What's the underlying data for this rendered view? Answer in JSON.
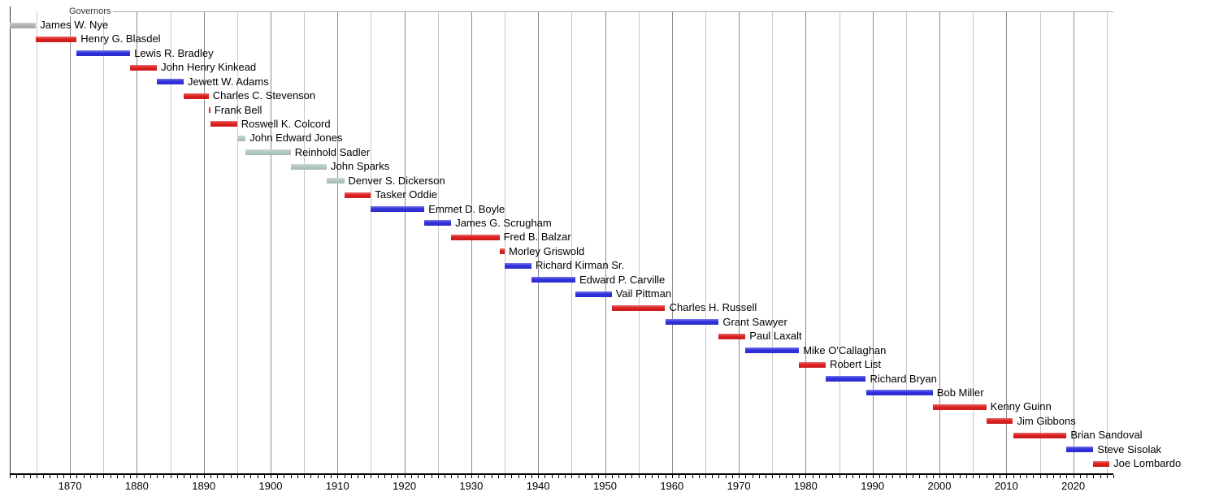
{
  "chart_data": {
    "type": "timeline",
    "title": "",
    "section_label": "Governors",
    "axis": {
      "min": 1861,
      "max": 2026,
      "grid_interval": 5,
      "decade_interval": 10,
      "minor_tick_interval": 1,
      "decade_labels": [
        1870,
        1880,
        1890,
        1900,
        1910,
        1920,
        1930,
        1940,
        1950,
        1960,
        1970,
        1980,
        1990,
        2000,
        2010,
        2020
      ],
      "grid": true,
      "legend": "none"
    },
    "palette": {
      "red": "#dc2020",
      "blue": "#3030dd",
      "silver": "#b2c9bd",
      "gray": "#b3b3b3",
      "grid_minor": "#c9c9c9",
      "grid_decade": "#8c8c8c",
      "axis": "#000000",
      "section_line": "#aaaaaa"
    },
    "governors": [
      {
        "name": "James W. Nye",
        "color": "gray",
        "start": 1861.0,
        "end": 1864.92
      },
      {
        "name": "Henry G. Blasdel",
        "color": "red",
        "start": 1864.92,
        "end": 1871.0
      },
      {
        "name": "Lewis R. Bradley",
        "color": "blue",
        "start": 1871.0,
        "end": 1879.0
      },
      {
        "name": "John Henry Kinkead",
        "color": "red",
        "start": 1879.0,
        "end": 1883.0
      },
      {
        "name": "Jewett W. Adams",
        "color": "blue",
        "start": 1883.0,
        "end": 1887.0
      },
      {
        "name": "Charles C. Stevenson",
        "color": "red",
        "start": 1887.0,
        "end": 1890.73
      },
      {
        "name": "Frank Bell",
        "color": "red",
        "start": 1890.73,
        "end": 1891.0
      },
      {
        "name": "Roswell K. Colcord",
        "color": "red",
        "start": 1891.0,
        "end": 1895.0
      },
      {
        "name": "John Edward Jones",
        "color": "silver",
        "start": 1895.0,
        "end": 1896.27
      },
      {
        "name": "Reinhold Sadler",
        "color": "silver",
        "start": 1896.27,
        "end": 1903.0
      },
      {
        "name": "John Sparks",
        "color": "silver",
        "start": 1903.0,
        "end": 1908.39
      },
      {
        "name": "Denver S. Dickerson",
        "color": "silver",
        "start": 1908.39,
        "end": 1911.0
      },
      {
        "name": "Tasker Oddie",
        "color": "red",
        "start": 1911.0,
        "end": 1915.0
      },
      {
        "name": "Emmet D. Boyle",
        "color": "blue",
        "start": 1915.0,
        "end": 1923.0
      },
      {
        "name": "James G. Scrugham",
        "color": "blue",
        "start": 1923.0,
        "end": 1927.0
      },
      {
        "name": "Fred B. Balzar",
        "color": "red",
        "start": 1927.0,
        "end": 1934.22
      },
      {
        "name": "Morley Griswold",
        "color": "red",
        "start": 1934.22,
        "end": 1935.0
      },
      {
        "name": "Richard Kirman Sr.",
        "color": "blue",
        "start": 1935.0,
        "end": 1939.0
      },
      {
        "name": "Edward P. Carville",
        "color": "blue",
        "start": 1939.0,
        "end": 1945.56
      },
      {
        "name": "Vail Pittman",
        "color": "blue",
        "start": 1945.56,
        "end": 1951.0
      },
      {
        "name": "Charles H. Russell",
        "color": "red",
        "start": 1951.0,
        "end": 1959.0
      },
      {
        "name": "Grant Sawyer",
        "color": "blue",
        "start": 1959.0,
        "end": 1967.0
      },
      {
        "name": "Paul Laxalt",
        "color": "red",
        "start": 1967.0,
        "end": 1971.0
      },
      {
        "name": "Mike O'Callaghan",
        "color": "blue",
        "start": 1971.0,
        "end": 1979.0
      },
      {
        "name": "Robert List",
        "color": "red",
        "start": 1979.0,
        "end": 1983.0
      },
      {
        "name": "Richard Bryan",
        "color": "blue",
        "start": 1983.0,
        "end": 1989.0
      },
      {
        "name": "Bob Miller",
        "color": "blue",
        "start": 1989.0,
        "end": 1999.0
      },
      {
        "name": "Kenny Guinn",
        "color": "red",
        "start": 1999.0,
        "end": 2007.0
      },
      {
        "name": "Jim Gibbons",
        "color": "red",
        "start": 2007.0,
        "end": 2011.0
      },
      {
        "name": "Brian Sandoval",
        "color": "red",
        "start": 2011.0,
        "end": 2019.0
      },
      {
        "name": "Steve Sisolak",
        "color": "blue",
        "start": 2019.0,
        "end": 2023.0
      },
      {
        "name": "Joe Lombardo",
        "color": "red",
        "start": 2023.0,
        "end": 2025.4
      }
    ]
  }
}
